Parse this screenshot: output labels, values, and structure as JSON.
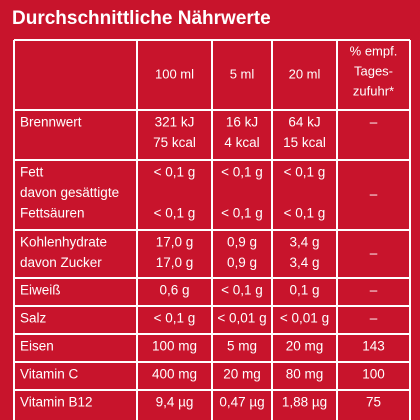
{
  "title": "Durchschnittliche Nährwerte",
  "table": {
    "header": [
      [
        "100 ml"
      ],
      [
        "5 ml"
      ],
      [
        "20 ml"
      ],
      [
        "% empf.",
        "Tages-",
        "zufuhr*"
      ]
    ],
    "rows": [
      {
        "label": [
          "Brennwert"
        ],
        "cells": [
          [
            "321 kJ",
            "75 kcal"
          ],
          [
            "16 kJ",
            "4 kcal"
          ],
          [
            "64 kJ",
            "15 kcal"
          ],
          [
            "–"
          ]
        ]
      },
      {
        "label": [
          "Fett",
          "davon gesättigte",
          "Fettsäuren"
        ],
        "cells": [
          [
            "< 0,1 g",
            "< 0,1 g"
          ],
          [
            "< 0,1 g",
            "< 0,1 g"
          ],
          [
            "< 0,1 g",
            "< 0,1 g"
          ],
          [
            "–"
          ]
        ]
      },
      {
        "label": [
          "Kohlenhydrate",
          "davon Zucker"
        ],
        "cells": [
          [
            "17,0 g",
            "17,0 g"
          ],
          [
            "0,9 g",
            "0,9 g"
          ],
          [
            "3,4 g",
            "3,4 g"
          ],
          [
            "–"
          ]
        ]
      },
      {
        "label": [
          "Eiweiß"
        ],
        "cells": [
          [
            "0,6 g"
          ],
          [
            "< 0,1 g"
          ],
          [
            "0,1 g"
          ],
          [
            "–"
          ]
        ]
      },
      {
        "label": [
          "Salz"
        ],
        "cells": [
          [
            "< 0,1 g"
          ],
          [
            "< 0,01 g"
          ],
          [
            "< 0,01 g"
          ],
          [
            "–"
          ]
        ]
      },
      {
        "label": [
          "Eisen"
        ],
        "cells": [
          [
            "100 mg"
          ],
          [
            "5 mg"
          ],
          [
            "20 mg"
          ],
          [
            "143"
          ]
        ]
      },
      {
        "label": [
          "Vitamin C"
        ],
        "cells": [
          [
            "400 mg"
          ],
          [
            "20 mg"
          ],
          [
            "80 mg"
          ],
          [
            "100"
          ]
        ]
      },
      {
        "label": [
          "Vitamin B12"
        ],
        "cells": [
          [
            "9,4 µg"
          ],
          [
            "0,47 µg"
          ],
          [
            "1,88 µg"
          ],
          [
            "75"
          ]
        ]
      }
    ]
  }
}
